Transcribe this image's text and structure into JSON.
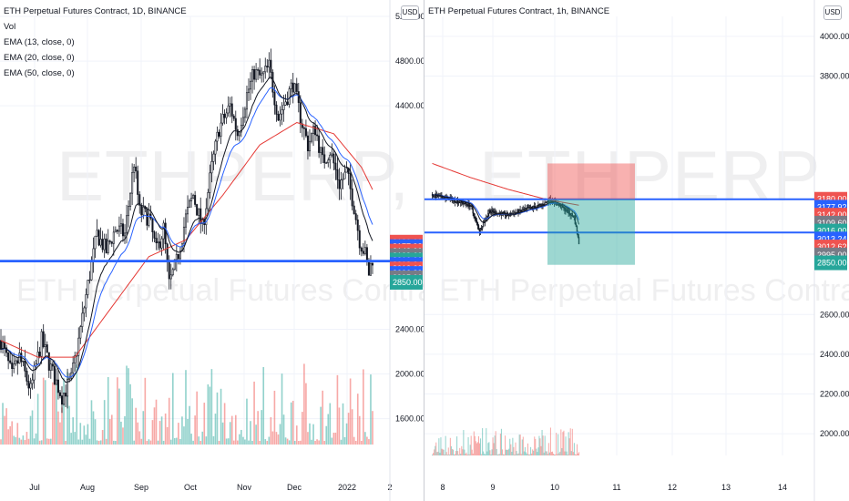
{
  "left_panel": {
    "title": "ETH Perpetual Futures Contract, 1D, BINANCE",
    "indicators": [
      "Vol",
      "EMA (13, close, 0)",
      "EMA (20, close, 0)",
      "EMA (50, close, 0)"
    ],
    "watermark_symbol": "ETHPERP, 1D",
    "watermark_name": "ETH Perpetual Futures Contract",
    "currency_button": "USD"
  },
  "right_panel": {
    "title": "ETH Perpetual Futures Contract, 1h, BINANCE",
    "watermark_symbol": "ETHPERP, 1h",
    "watermark_name": "ETH Perpetual Futures Contract",
    "currency_button": "USD"
  },
  "colors": {
    "up": "#26a69a",
    "down": "#ef5350",
    "candle_up": "#ffffff",
    "candle_down": "#131722",
    "ema13": "#131722",
    "ema20": "#2962ff",
    "ema50": "#e53935",
    "hline": "#2962ff",
    "target": "#26a69a",
    "stop": "#ef5350",
    "grey": "#787b86"
  },
  "chart_data": [
    {
      "type": "candlestick",
      "timeframe": "1D",
      "x_ticks": [
        "Jul",
        "Aug",
        "Sep",
        "Oct",
        "Nov",
        "Dec",
        "2022",
        "2"
      ],
      "y_ticks": [
        1600,
        2000,
        2400,
        4400,
        4800,
        5200
      ],
      "y_tick_labels": [
        "1600.00",
        "2000.00",
        "2400.00",
        "4400.00",
        "4800.00",
        "5200.00"
      ],
      "ylim": [
        1450,
        5200
      ],
      "price_path": [
        [
          0,
          2300
        ],
        [
          6,
          1980
        ],
        [
          10,
          2150
        ],
        [
          16,
          1850
        ],
        [
          22,
          2300
        ],
        [
          27,
          2050
        ],
        [
          33,
          1800
        ],
        [
          38,
          1950
        ],
        [
          42,
          2300
        ],
        [
          47,
          2800
        ],
        [
          52,
          3250
        ],
        [
          57,
          3100
        ],
        [
          62,
          3300
        ],
        [
          67,
          3250
        ],
        [
          72,
          3900
        ],
        [
          75,
          3450
        ],
        [
          80,
          3400
        ],
        [
          84,
          3100
        ],
        [
          88,
          3300
        ],
        [
          91,
          2800
        ],
        [
          95,
          3000
        ],
        [
          100,
          3400
        ],
        [
          104,
          3600
        ],
        [
          109,
          3300
        ],
        [
          114,
          3850
        ],
        [
          118,
          4200
        ],
        [
          124,
          4400
        ],
        [
          128,
          4150
        ],
        [
          133,
          4500
        ],
        [
          137,
          4700
        ],
        [
          141,
          4650
        ],
        [
          145,
          4750
        ],
        [
          150,
          4300
        ],
        [
          154,
          4450
        ],
        [
          158,
          4600
        ],
        [
          162,
          4300
        ],
        [
          166,
          4050
        ],
        [
          170,
          4200
        ],
        [
          174,
          3900
        ],
        [
          178,
          4000
        ],
        [
          183,
          3700
        ],
        [
          187,
          3800
        ],
        [
          191,
          3500
        ],
        [
          194,
          3200
        ],
        [
          197,
          3070
        ],
        [
          199,
          2900
        ],
        [
          201,
          3040
        ]
      ],
      "ema50_path": [
        [
          0,
          2300
        ],
        [
          20,
          2150
        ],
        [
          40,
          2150
        ],
        [
          60,
          2600
        ],
        [
          80,
          3050
        ],
        [
          100,
          3200
        ],
        [
          120,
          3600
        ],
        [
          140,
          4050
        ],
        [
          160,
          4250
        ],
        [
          180,
          4150
        ],
        [
          195,
          3850
        ],
        [
          201,
          3650
        ]
      ],
      "hlines": [
        3013.24,
        3006.89
      ],
      "price_tags": [
        {
          "label": "3180.00",
          "value": 3180,
          "color": "#ef5350"
        },
        {
          "label": "3177.92",
          "value": 3140,
          "color": "#2962ff"
        },
        {
          "label": "3142.00",
          "value": 3100,
          "color": "#ef5350"
        },
        {
          "label": "3109.60",
          "value": 3060,
          "color": "#787b86"
        },
        {
          "label": "3016.00",
          "value": 3020,
          "color": "#26a69a"
        },
        {
          "label": "3013.24",
          "value": 2980,
          "color": "#2962ff"
        },
        {
          "label": "3012.62",
          "value": 2940,
          "color": "#ef5350"
        },
        {
          "label": "3006.89",
          "value": 2900,
          "color": "#2962ff"
        },
        {
          "label": "2995.00",
          "value": 2860,
          "color": "#787b86"
        },
        {
          "label": "2850.00",
          "value": 2820,
          "color": "#26a69a"
        }
      ]
    },
    {
      "type": "candlestick",
      "timeframe": "1h",
      "x_ticks": [
        "8",
        "9",
        "10",
        "11",
        "12",
        "13",
        "14"
      ],
      "y_ticks": [
        2000,
        2200,
        2400,
        2600,
        3800,
        4000
      ],
      "y_tick_labels": [
        "2000.00",
        "2200.00",
        "2400.00",
        "2600.00",
        "3800.00",
        "4000.00"
      ],
      "ylim": [
        1900,
        4100
      ],
      "price_path": [
        [
          0,
          3200
        ],
        [
          20,
          3180
        ],
        [
          40,
          3150
        ],
        [
          50,
          3020
        ],
        [
          60,
          3120
        ],
        [
          80,
          3100
        ],
        [
          100,
          3130
        ],
        [
          115,
          3150
        ],
        [
          125,
          3180
        ],
        [
          140,
          3130
        ],
        [
          150,
          3090
        ],
        [
          155,
          2960
        ]
      ],
      "ema50_path": [
        [
          0,
          3360
        ],
        [
          40,
          3290
        ],
        [
          80,
          3230
        ],
        [
          120,
          3180
        ],
        [
          155,
          3150
        ]
      ],
      "hlines": [
        3180.0,
        3012.62
      ],
      "position": {
        "entry": 3180.0,
        "stop": 3360,
        "target": 2850.0
      },
      "price_tags": [
        {
          "label": "3180.00",
          "value": 3180,
          "color": "#ef5350"
        },
        {
          "label": "3177.92",
          "value": 3140,
          "color": "#2962ff"
        },
        {
          "label": "3142.00",
          "value": 3100,
          "color": "#ef5350"
        },
        {
          "label": "3109.60",
          "value": 3060,
          "color": "#787b86"
        },
        {
          "label": "3016.00",
          "value": 3020,
          "color": "#26a69a"
        },
        {
          "label": "3013.24",
          "value": 2980,
          "color": "#2962ff"
        },
        {
          "label": "3012.62",
          "value": 2940,
          "color": "#ef5350"
        },
        {
          "label": "2995.00",
          "value": 2900,
          "color": "#787b86"
        },
        {
          "label": "2850.00",
          "value": 2860,
          "color": "#26a69a"
        }
      ]
    }
  ]
}
